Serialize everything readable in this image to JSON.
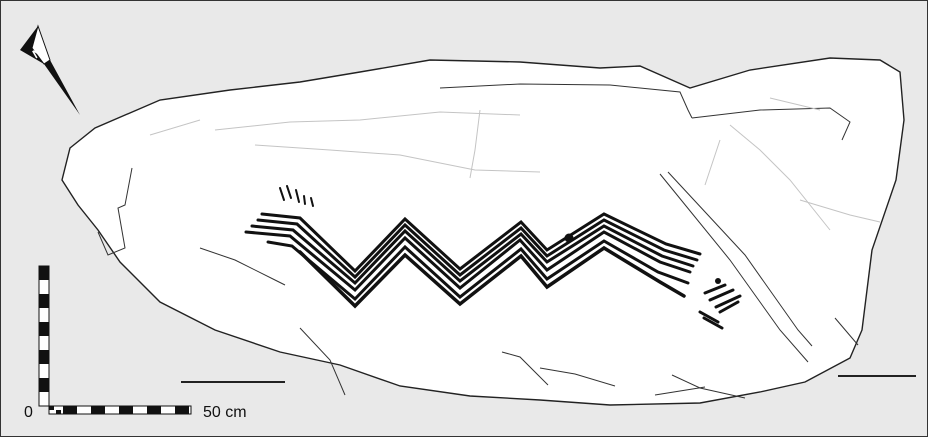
{
  "scale": {
    "start_label": "0",
    "end_label": "50 cm"
  },
  "colors": {
    "background": "#e9e9e9",
    "rock": "#ffffff",
    "ink": "#111111",
    "crack": "#bdbdbd"
  },
  "icons": {
    "north_arrow": "north-arrow-icon"
  }
}
